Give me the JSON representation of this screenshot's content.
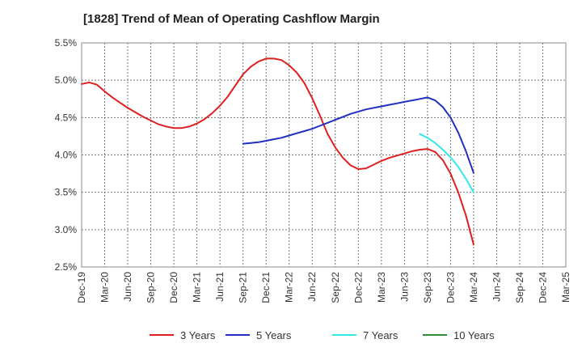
{
  "chart_data": {
    "type": "line",
    "title": "[1828]  Trend of Mean of Operating Cashflow Margin",
    "xlabel": "",
    "ylabel": "",
    "x_ticks": [
      "Dec-19",
      "Mar-20",
      "Jun-20",
      "Sep-20",
      "Dec-20",
      "Mar-21",
      "Jun-21",
      "Sep-21",
      "Dec-21",
      "Mar-22",
      "Jun-22",
      "Sep-22",
      "Dec-22",
      "Mar-23",
      "Jun-23",
      "Sep-23",
      "Dec-23",
      "Mar-24",
      "Jun-24",
      "Sep-24",
      "Dec-24",
      "Mar-25"
    ],
    "y_ticks": [
      "2.5%",
      "3.0%",
      "3.5%",
      "4.0%",
      "4.5%",
      "5.0%",
      "5.5%"
    ],
    "ylim": [
      2.5,
      5.5
    ],
    "grid": true,
    "legend_position": "bottom",
    "series": [
      {
        "name": "3 Years",
        "color": "#dd1f1f",
        "x": [
          "2019-12",
          "2020-01",
          "2020-02",
          "2020-03",
          "2020-04",
          "2020-05",
          "2020-06",
          "2020-07",
          "2020-08",
          "2020-09",
          "2020-10",
          "2020-11",
          "2020-12",
          "2021-01",
          "2021-02",
          "2021-03",
          "2021-04",
          "2021-05",
          "2021-06",
          "2021-07",
          "2021-08",
          "2021-09",
          "2021-10",
          "2021-11",
          "2021-12",
          "2022-01",
          "2022-02",
          "2022-03",
          "2022-04",
          "2022-05",
          "2022-06",
          "2022-07",
          "2022-08",
          "2022-09",
          "2022-10",
          "2022-11",
          "2022-12",
          "2023-01",
          "2023-02",
          "2023-03",
          "2023-04",
          "2023-05",
          "2023-06",
          "2023-07",
          "2023-08",
          "2023-09",
          "2023-10",
          "2023-11",
          "2023-12",
          "2024-01",
          "2024-02",
          "2024-03"
        ],
        "values": [
          4.95,
          4.97,
          4.94,
          4.85,
          4.77,
          4.7,
          4.63,
          4.57,
          4.51,
          4.46,
          4.41,
          4.38,
          4.36,
          4.36,
          4.38,
          4.42,
          4.48,
          4.56,
          4.66,
          4.78,
          4.93,
          5.08,
          5.18,
          5.25,
          5.29,
          5.29,
          5.27,
          5.2,
          5.1,
          4.96,
          4.76,
          4.53,
          4.28,
          4.1,
          3.96,
          3.86,
          3.81,
          3.82,
          3.87,
          3.92,
          3.96,
          3.99,
          4.02,
          4.05,
          4.07,
          4.08,
          4.04,
          3.93,
          3.75,
          3.5,
          3.19,
          2.8
        ]
      },
      {
        "name": "5 Years",
        "color": "#1f2fbf",
        "x": [
          "2021-09",
          "2021-10",
          "2021-11",
          "2021-12",
          "2022-01",
          "2022-02",
          "2022-03",
          "2022-04",
          "2022-05",
          "2022-06",
          "2022-07",
          "2022-08",
          "2022-09",
          "2022-10",
          "2022-11",
          "2022-12",
          "2023-01",
          "2023-02",
          "2023-03",
          "2023-04",
          "2023-05",
          "2023-06",
          "2023-07",
          "2023-08",
          "2023-09",
          "2023-10",
          "2023-11",
          "2023-12",
          "2024-01",
          "2024-02",
          "2024-03"
        ],
        "values": [
          4.15,
          4.16,
          4.17,
          4.19,
          4.21,
          4.23,
          4.26,
          4.29,
          4.32,
          4.35,
          4.39,
          4.43,
          4.47,
          4.51,
          4.55,
          4.58,
          4.61,
          4.63,
          4.65,
          4.67,
          4.69,
          4.71,
          4.73,
          4.75,
          4.77,
          4.73,
          4.64,
          4.5,
          4.3,
          4.05,
          3.76
        ]
      },
      {
        "name": "7 Years",
        "color": "#33e8e8",
        "x": [
          "2023-08",
          "2023-09",
          "2023-10",
          "2023-11",
          "2023-12",
          "2024-01",
          "2024-02",
          "2024-03"
        ],
        "values": [
          4.28,
          4.23,
          4.16,
          4.07,
          3.97,
          3.84,
          3.68,
          3.5
        ]
      },
      {
        "name": "10 Years",
        "color": "#2e8b2e",
        "x": [],
        "values": []
      }
    ]
  }
}
